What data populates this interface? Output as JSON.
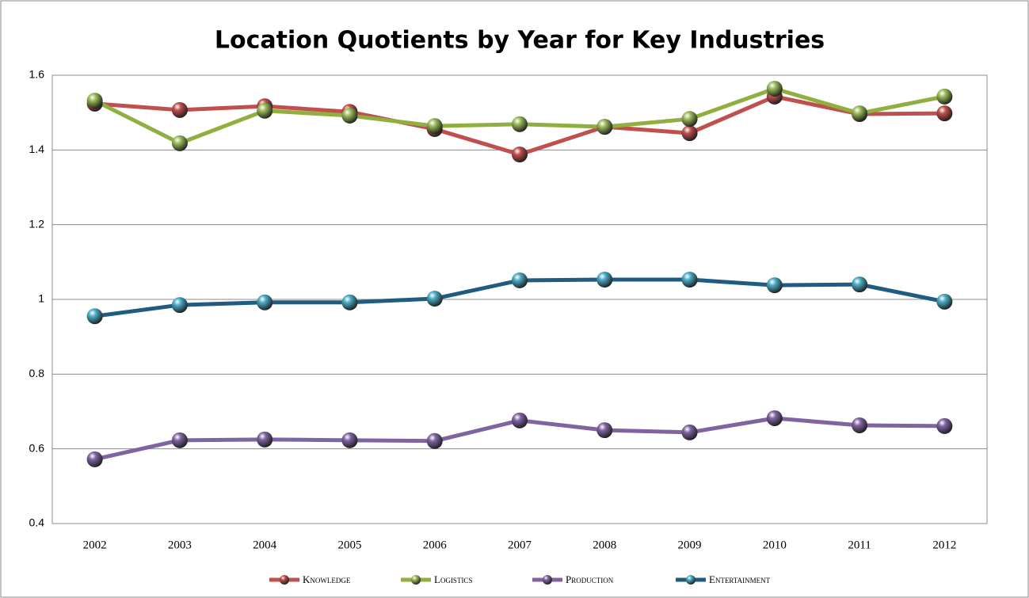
{
  "chart_data": {
    "type": "line",
    "title": "Location Quotients by Year for Key Industries",
    "categories": [
      "2002",
      "2003",
      "2004",
      "2005",
      "2006",
      "2007",
      "2008",
      "2009",
      "2010",
      "2011",
      "2012"
    ],
    "series": [
      {
        "name": "Knowledge",
        "color": "#c0504d",
        "marker_color": "#c0504d",
        "values": [
          1.524,
          1.507,
          1.517,
          1.502,
          1.456,
          1.388,
          1.462,
          1.445,
          1.543,
          1.496,
          1.498
        ]
      },
      {
        "name": "Logistics",
        "color": "#8faf3f",
        "marker_color": "#9bbb59",
        "values": [
          1.532,
          1.418,
          1.505,
          1.492,
          1.464,
          1.469,
          1.462,
          1.483,
          1.564,
          1.498,
          1.543
        ]
      },
      {
        "name": "Production",
        "color": "#8064a2",
        "marker_color": "#8064a2",
        "values": [
          0.572,
          0.623,
          0.625,
          0.623,
          0.621,
          0.676,
          0.65,
          0.644,
          0.682,
          0.663,
          0.661
        ]
      },
      {
        "name": "Entertainment",
        "color": "#1f5c7f",
        "marker_color": "#4bacc6",
        "values": [
          0.955,
          0.985,
          0.992,
          0.992,
          1.002,
          1.051,
          1.053,
          1.053,
          1.038,
          1.04,
          0.994
        ]
      }
    ],
    "ylim": [
      0.4,
      1.6
    ],
    "yticks": [
      0.4,
      0.6,
      0.8,
      1,
      1.2,
      1.4,
      1.6
    ],
    "grid": true,
    "legend": "bottom"
  }
}
